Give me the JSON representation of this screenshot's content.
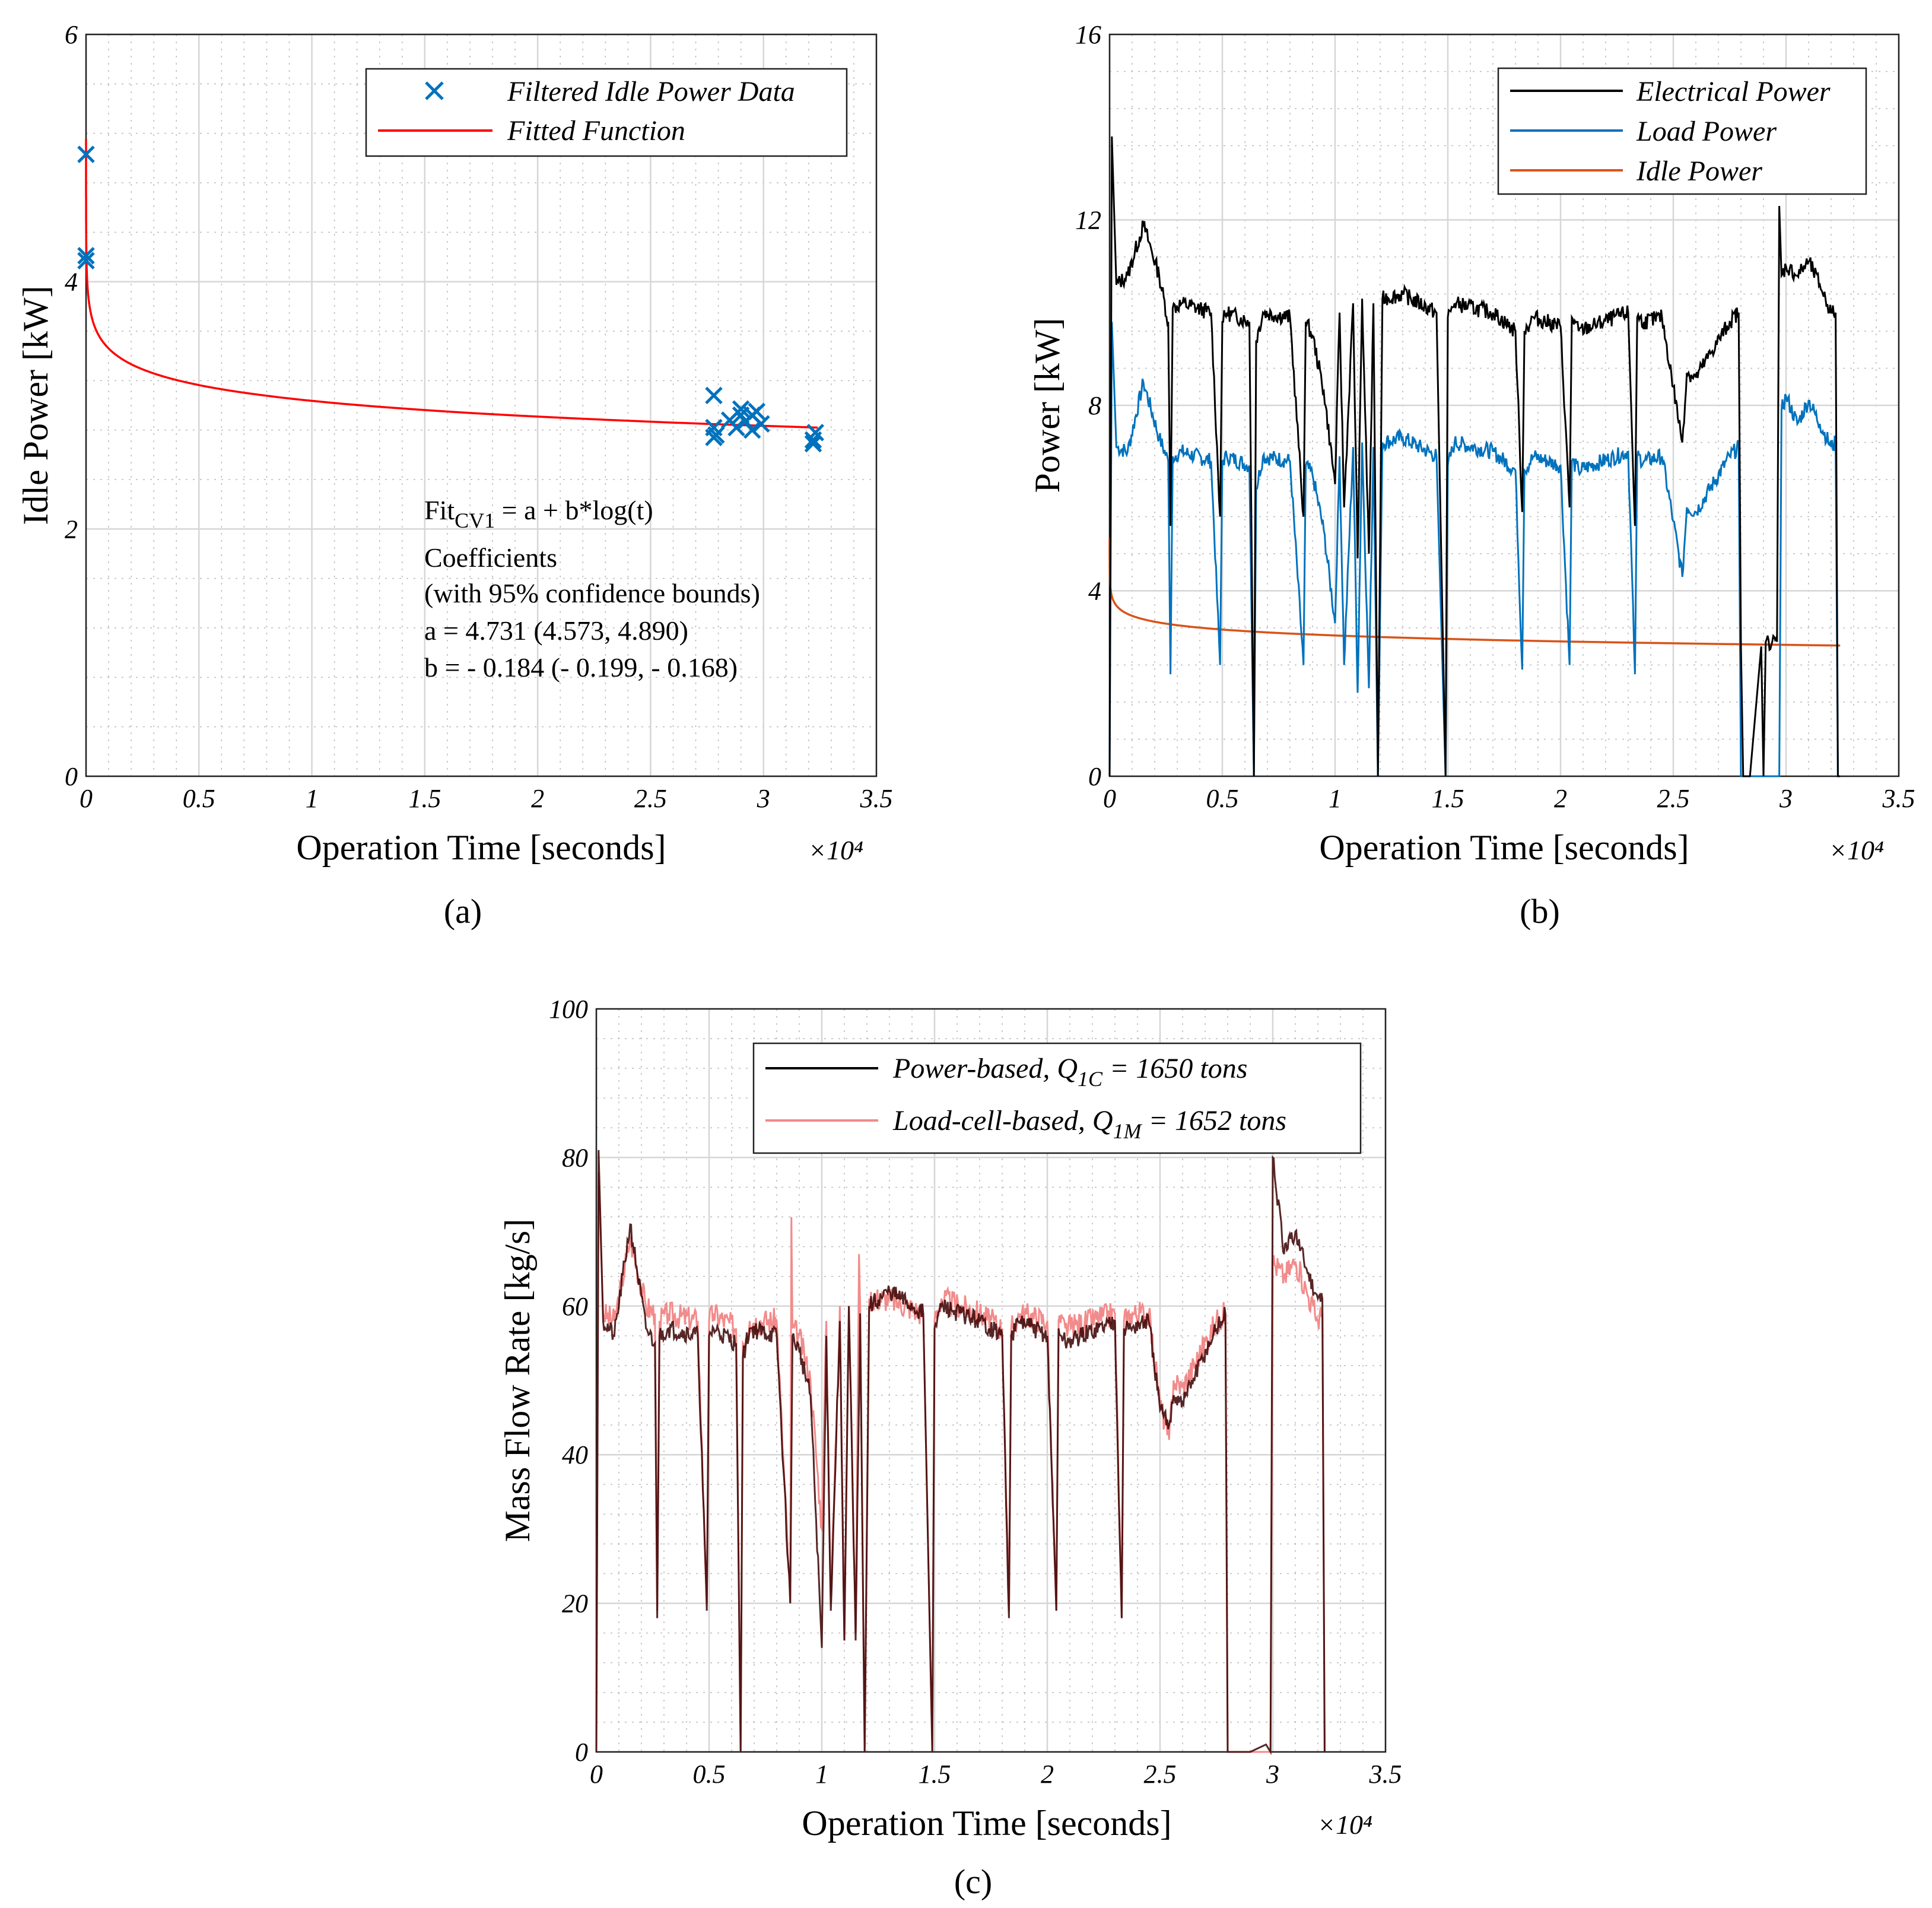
{
  "chart_data": [
    {
      "panel_label": "(a)",
      "type": "scatter",
      "xlabel": "Operation Time [seconds]",
      "ylabel": "Idle Power [kW]",
      "x_multiplier": "×10⁴",
      "xlim": [
        0,
        3.5
      ],
      "ylim": [
        0,
        6
      ],
      "xticks": [
        "0",
        "0.5",
        "1",
        "1.5",
        "2",
        "2.5",
        "3",
        "3.5"
      ],
      "yticks": [
        "0",
        "2",
        "4",
        "6"
      ],
      "grid": true,
      "legend": {
        "position": "top-right",
        "entries": [
          "Filtered Idle Power Data",
          "Fitted Function"
        ]
      },
      "series": [
        {
          "name": "Filtered Idle Power Data",
          "kind": "markers",
          "color": "#0072BD",
          "x": [
            0.0,
            0.0,
            0.0,
            2.78,
            2.78,
            2.78,
            2.79,
            2.85,
            2.88,
            2.9,
            2.92,
            2.95,
            2.97,
            2.99,
            2.9,
            2.95,
            3.22,
            3.23,
            3.22
          ],
          "y": [
            5.03,
            4.21,
            4.17,
            3.08,
            2.82,
            2.74,
            2.76,
            2.88,
            2.82,
            2.92,
            2.87,
            2.8,
            2.95,
            2.85,
            2.97,
            2.92,
            2.72,
            2.78,
            2.69
          ]
        },
        {
          "name": "Fitted Function",
          "kind": "line",
          "color": "#FF0000",
          "model": "a + b*log(t)",
          "a": 4.731,
          "b": -0.184,
          "x_range": [
            1e-05,
            3.24
          ]
        }
      ],
      "annotation": {
        "fit_prefix": "Fit",
        "fit_subscript": "CV1",
        "fit_suffix": " = a + b*log(t)",
        "line2": "Coefficients",
        "line3": "(with 95% confidence bounds)",
        "line4": "a = 4.731 (4.573, 4.890)",
        "line5": "b = - 0.184 (- 0.199, - 0.168)"
      }
    },
    {
      "panel_label": "(b)",
      "type": "line",
      "xlabel": "Operation Time [seconds]",
      "ylabel": "Power [kW]",
      "x_multiplier": "×10⁴",
      "xlim": [
        0,
        3.5
      ],
      "ylim": [
        0,
        16
      ],
      "xticks": [
        "0",
        "0.5",
        "1",
        "1.5",
        "2",
        "2.5",
        "3",
        "3.5"
      ],
      "yticks": [
        "0",
        "4",
        "8",
        "12",
        "16"
      ],
      "grid": true,
      "legend": {
        "position": "top-right",
        "entries": [
          "Electrical Power",
          "Load Power",
          "Idle Power"
        ]
      },
      "series": [
        {
          "name": "Electrical Power",
          "color": "#000000",
          "x": [
            0,
            0.01,
            0.03,
            0.08,
            0.15,
            0.22,
            0.26,
            0.27,
            0.28,
            0.32,
            0.45,
            0.49,
            0.5,
            0.52,
            0.62,
            0.64,
            0.65,
            0.68,
            0.8,
            0.86,
            0.87,
            0.9,
            0.95,
            1.0,
            1.02,
            1.04,
            1.08,
            1.1,
            1.12,
            1.15,
            1.17,
            1.19,
            1.21,
            1.3,
            1.45,
            1.49,
            1.5,
            1.53,
            1.7,
            1.8,
            1.83,
            1.84,
            1.88,
            2.0,
            2.04,
            2.05,
            2.08,
            2.3,
            2.33,
            2.34,
            2.37,
            2.45,
            2.5,
            2.54,
            2.56,
            2.6,
            2.75,
            2.79,
            2.8,
            2.81,
            2.84,
            2.89,
            2.9,
            2.91,
            2.96,
            2.97,
            2.98,
            3.0,
            3.05,
            3.1,
            3.15,
            3.2,
            3.22,
            3.23,
            3.24
          ],
          "y": [
            0,
            13.8,
            10.6,
            10.8,
            11.9,
            10.8,
            9.8,
            5.4,
            10.1,
            10.2,
            10.0,
            5.6,
            9.8,
            10.0,
            9.8,
            0.0,
            9.4,
            10.0,
            9.9,
            5.6,
            9.8,
            9.5,
            8.3,
            6.3,
            10.0,
            5.8,
            10.2,
            4.7,
            10.3,
            4.8,
            10.2,
            0.0,
            10.3,
            10.4,
            10.0,
            0.0,
            9.9,
            10.2,
            10.0,
            9.6,
            5.7,
            9.6,
            9.9,
            9.7,
            5.8,
            9.9,
            9.6,
            10.0,
            5.4,
            9.9,
            9.8,
            9.9,
            8.4,
            7.2,
            8.7,
            8.6,
            9.8,
            10.0,
            2.8,
            0.0,
            0.0,
            2.8,
            0.0,
            2.9,
            2.9,
            12.3,
            10.8,
            11.0,
            10.8,
            11.1,
            10.6,
            10.0,
            10.0,
            0.0,
            0.0
          ]
        },
        {
          "name": "Load Power",
          "color": "#0072BD",
          "x": [
            0,
            0.01,
            0.03,
            0.08,
            0.15,
            0.22,
            0.26,
            0.27,
            0.28,
            0.32,
            0.45,
            0.49,
            0.5,
            0.52,
            0.62,
            0.64,
            0.65,
            0.68,
            0.8,
            0.86,
            0.87,
            0.9,
            0.95,
            1.0,
            1.02,
            1.04,
            1.08,
            1.1,
            1.12,
            1.15,
            1.17,
            1.19,
            1.21,
            1.3,
            1.45,
            1.49,
            1.5,
            1.53,
            1.7,
            1.8,
            1.83,
            1.84,
            1.88,
            2.0,
            2.04,
            2.05,
            2.08,
            2.3,
            2.33,
            2.34,
            2.37,
            2.45,
            2.5,
            2.54,
            2.56,
            2.6,
            2.75,
            2.79,
            2.8,
            2.81,
            2.97,
            2.98,
            3.0,
            3.05,
            3.1,
            3.15,
            3.2,
            3.22,
            3.23,
            3.24
          ],
          "y": [
            0,
            9.8,
            7.1,
            7.0,
            8.5,
            7.3,
            6.8,
            2.2,
            6.9,
            7.0,
            6.8,
            2.4,
            6.8,
            6.9,
            6.7,
            0.0,
            6.2,
            6.9,
            6.8,
            2.4,
            6.7,
            6.5,
            5.3,
            3.3,
            6.9,
            2.4,
            7.1,
            1.8,
            7.2,
            1.9,
            7.1,
            0.0,
            7.2,
            7.3,
            6.9,
            0.0,
            6.7,
            7.2,
            7.0,
            6.6,
            2.3,
            6.6,
            6.9,
            6.7,
            2.4,
            6.8,
            6.6,
            7.0,
            2.2,
            6.9,
            6.8,
            6.9,
            5.5,
            4.3,
            5.8,
            5.7,
            6.9,
            7.1,
            0.0,
            0.0,
            0.0,
            7.9,
            8.2,
            7.6,
            8.1,
            7.6,
            7.1,
            7.2,
            0.0,
            0.0
          ]
        },
        {
          "name": "Idle Power",
          "color": "#D95319",
          "model": "a + b*log(t)",
          "a": 4.731,
          "b": -0.184,
          "x_range": [
            1e-05,
            3.24
          ]
        }
      ]
    },
    {
      "panel_label": "(c)",
      "type": "line",
      "xlabel": "Operation Time [seconds]",
      "ylabel": "Mass Flow Rate [kg/s]",
      "x_multiplier": "×10⁴",
      "xlim": [
        0,
        3.5
      ],
      "ylim": [
        0,
        100
      ],
      "xticks": [
        "0",
        "0.5",
        "1",
        "1.5",
        "2",
        "2.5",
        "3",
        "3.5"
      ],
      "yticks": [
        "0",
        "20",
        "40",
        "60",
        "80",
        "100"
      ],
      "grid": true,
      "legend": {
        "position": "top-right",
        "entries": [
          {
            "prefix": "Power-based, Q",
            "sub": "1C",
            "suffix": " = 1650 tons"
          },
          {
            "prefix": "Load-cell-based, Q",
            "sub": "1M",
            "suffix": " = 1652 tons"
          }
        ]
      },
      "series": [
        {
          "name": "Load-cell-based",
          "color": "#F28B8B",
          "x": [
            0,
            0.01,
            0.03,
            0.08,
            0.15,
            0.22,
            0.26,
            0.27,
            0.28,
            0.32,
            0.45,
            0.49,
            0.5,
            0.52,
            0.62,
            0.64,
            0.65,
            0.68,
            0.8,
            0.86,
            0.865,
            0.87,
            0.9,
            0.95,
            1.0,
            1.02,
            1.04,
            1.08,
            1.1,
            1.12,
            1.15,
            1.165,
            1.17,
            1.19,
            1.21,
            1.3,
            1.45,
            1.49,
            1.5,
            1.53,
            1.7,
            1.8,
            1.83,
            1.84,
            1.88,
            2.0,
            2.04,
            2.05,
            2.08,
            2.3,
            2.33,
            2.34,
            2.37,
            2.45,
            2.5,
            2.54,
            2.56,
            2.6,
            2.75,
            2.79,
            2.8,
            2.99,
            3.0,
            3.05,
            3.1,
            3.15,
            3.2,
            3.22,
            3.23
          ],
          "y": [
            0,
            78,
            59,
            58,
            69,
            60,
            59,
            19,
            58,
            59,
            58,
            20,
            58,
            59,
            57,
            0,
            55,
            58,
            58,
            20,
            72,
            57,
            56,
            50,
            30,
            58,
            20,
            60,
            15,
            60,
            16,
            67,
            60,
            0,
            61,
            61,
            59,
            0,
            58,
            61,
            59,
            57,
            19,
            57,
            59,
            58,
            19,
            58,
            57,
            59,
            18,
            58,
            59,
            59,
            47,
            42,
            50,
            49,
            58,
            59,
            0,
            0,
            66,
            64,
            66,
            62,
            58,
            59,
            0
          ]
        },
        {
          "name": "Power-based",
          "color": "#000000",
          "x": [
            0,
            0.01,
            0.03,
            0.08,
            0.15,
            0.22,
            0.26,
            0.27,
            0.28,
            0.32,
            0.45,
            0.49,
            0.5,
            0.52,
            0.62,
            0.64,
            0.65,
            0.68,
            0.8,
            0.86,
            0.87,
            0.9,
            0.95,
            1.0,
            1.02,
            1.04,
            1.08,
            1.1,
            1.12,
            1.15,
            1.17,
            1.19,
            1.21,
            1.3,
            1.45,
            1.49,
            1.5,
            1.53,
            1.7,
            1.8,
            1.83,
            1.84,
            1.88,
            2.0,
            2.04,
            2.05,
            2.08,
            2.3,
            2.33,
            2.34,
            2.37,
            2.45,
            2.5,
            2.54,
            2.56,
            2.6,
            2.75,
            2.79,
            2.8,
            2.84,
            2.89,
            2.9,
            2.97,
            2.99,
            3.0,
            3.05,
            3.1,
            3.15,
            3.2,
            3.22,
            3.23
          ],
          "y": [
            0,
            81,
            58,
            56,
            71,
            57,
            55,
            18,
            56,
            57,
            56,
            19,
            56,
            57,
            55,
            0,
            53,
            57,
            56,
            20,
            56,
            54,
            48,
            14,
            56,
            19,
            58,
            15,
            60,
            15,
            59,
            0,
            60,
            62,
            59,
            0,
            57,
            60,
            58,
            56,
            18,
            56,
            58,
            56,
            19,
            57,
            55,
            58,
            18,
            57,
            57,
            58,
            46,
            44,
            48,
            47,
            57,
            59,
            0,
            0,
            0,
            0,
            1,
            0,
            80,
            67,
            70,
            65,
            61,
            61,
            0
          ]
        }
      ]
    }
  ]
}
